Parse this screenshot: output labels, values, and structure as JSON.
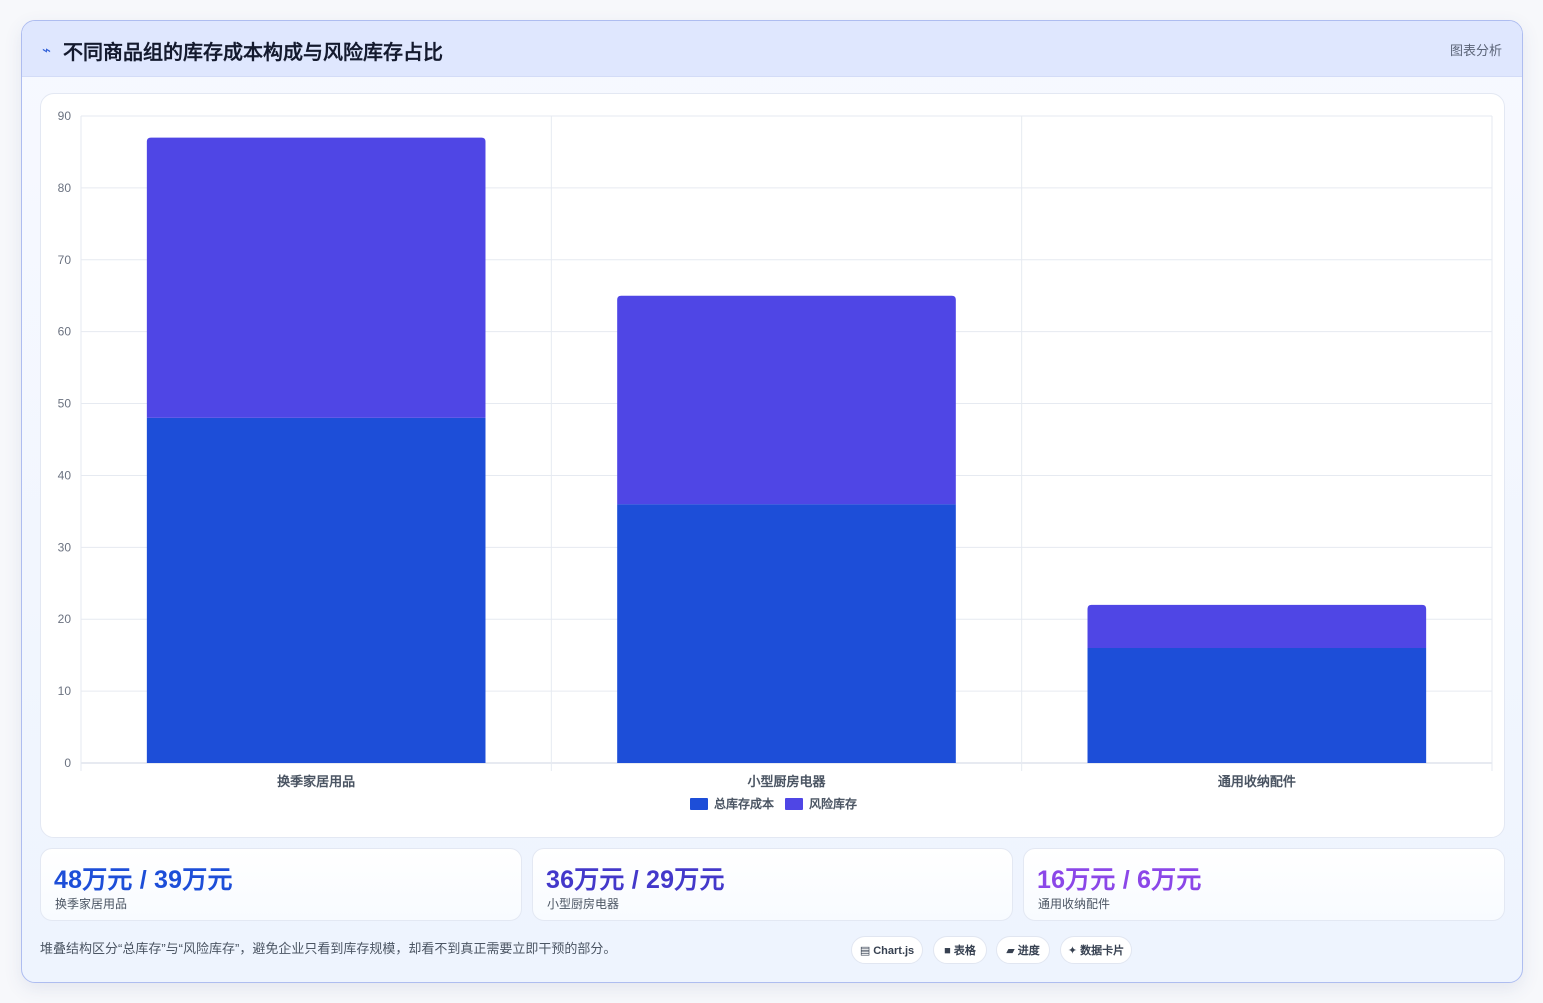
{
  "header": {
    "icon": "chart-icon",
    "title": "不同商品组的库存成本构成与风险库存占比",
    "right_label": "图表分析"
  },
  "chart_data": {
    "type": "bar",
    "stacked": true,
    "categories": [
      "换季家居用品",
      "小型厨房电器",
      "通用收纳配件"
    ],
    "series": [
      {
        "name": "总库存成本",
        "values": [
          48,
          36,
          16
        ],
        "color": "#1d4ed8"
      },
      {
        "name": "风险库存",
        "values": [
          39,
          29,
          6
        ],
        "color": "#4f46e5"
      }
    ],
    "ylim": [
      0,
      90
    ],
    "yticks": [
      0,
      10,
      20,
      30,
      40,
      50,
      60,
      70,
      80,
      90
    ],
    "grid": true,
    "legend_position": "bottom"
  },
  "stats": [
    {
      "value": "48万元 / 39万元",
      "label": "换季家居用品",
      "color": "#1d4ed8"
    },
    {
      "value": "36万元 / 29万元",
      "label": "小型厨房电器",
      "color": "#4338ca"
    },
    {
      "value": "16万元 / 6万元",
      "label": "通用收纳配件",
      "color": "#8b47e8"
    }
  ],
  "footer": {
    "note": "堆叠结构区分“总库存”与“风险库存”，避免企业只看到库存规模，却看不到真正需要立即干预的部分。",
    "tags": [
      {
        "icon": "chart-js-icon",
        "glyph": "▤",
        "label": "Chart.js"
      },
      {
        "icon": "table-icon",
        "glyph": "■",
        "label": "表格"
      },
      {
        "icon": "progress-icon",
        "glyph": "▰",
        "label": "进度"
      },
      {
        "icon": "data-card-icon",
        "glyph": "✦",
        "label": "数据卡片"
      }
    ]
  }
}
